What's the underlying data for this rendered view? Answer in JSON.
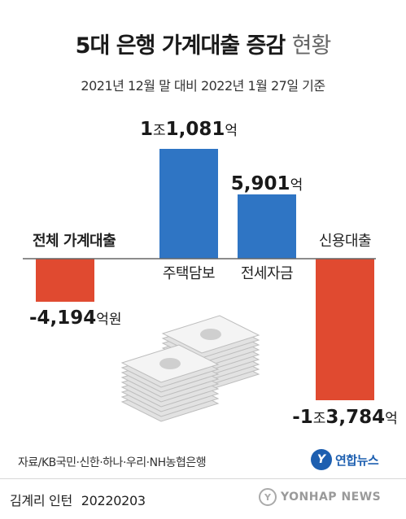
{
  "header": {
    "title_bold": "5대 은행 가계대출 증감",
    "title_light": "현황",
    "subtitle": "2021년 12월 말 대비 2022년 1월 27일 기준"
  },
  "chart_data": {
    "type": "bar",
    "title": "5대 은행 가계대출 증감 현황",
    "subtitle": "2021년 12월 말 대비 2022년 1월 27일 기준",
    "unit": "억원",
    "categories": [
      "전체 가계대출",
      "주택담보",
      "전세자금",
      "신용대출"
    ],
    "values": [
      -4194,
      10081,
      5901,
      -13784
    ],
    "value_labels": [
      {
        "big": "-4,194",
        "small": "억원"
      },
      {
        "big": "1",
        "mid": "조",
        "big2": "1,081",
        "small": "억"
      },
      {
        "big": "5,901",
        "small": "억"
      },
      {
        "big": "-1",
        "mid": "조",
        "big2": "3,784",
        "small": "억"
      }
    ],
    "colors": {
      "positive": "#2f75c4",
      "negative": "#e04a30"
    },
    "ylim": [
      -15000,
      11000
    ],
    "grid": false,
    "legend": "none"
  },
  "footer": {
    "source": "자료/KB국민·신한·하나·우리·NH농협은행",
    "logo_mark": "Y",
    "logo_text": "연합뉴스",
    "credit_name": "김계리 인턴",
    "credit_date": "20220203",
    "watermark_mark": "Y",
    "watermark_text": "YONHAP NEWS"
  }
}
